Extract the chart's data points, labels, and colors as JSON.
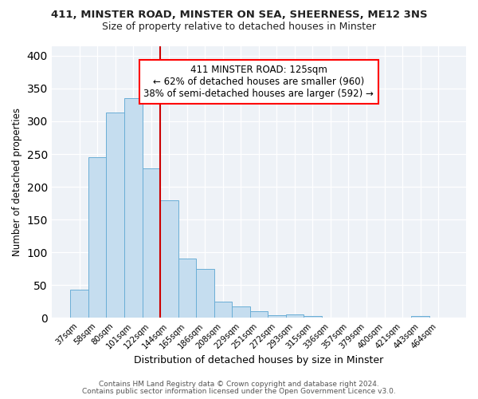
{
  "title1": "411, MINSTER ROAD, MINSTER ON SEA, SHEERNESS, ME12 3NS",
  "title2": "Size of property relative to detached houses in Minster",
  "xlabel": "Distribution of detached houses by size in Minster",
  "ylabel": "Number of detached properties",
  "bar_labels": [
    "37sqm",
    "58sqm",
    "80sqm",
    "101sqm",
    "122sqm",
    "144sqm",
    "165sqm",
    "186sqm",
    "208sqm",
    "229sqm",
    "251sqm",
    "272sqm",
    "293sqm",
    "315sqm",
    "336sqm",
    "357sqm",
    "379sqm",
    "400sqm",
    "421sqm",
    "443sqm",
    "464sqm"
  ],
  "bar_values": [
    43,
    245,
    313,
    335,
    228,
    180,
    91,
    75,
    25,
    17,
    10,
    4,
    5,
    3,
    0,
    0,
    0,
    0,
    0,
    3,
    0
  ],
  "bar_color": "#c5ddef",
  "bar_edge_color": "#6aaed6",
  "vline_x": 4.5,
  "vline_color": "#cc0000",
  "annotation_title": "411 MINSTER ROAD: 125sqm",
  "annotation_line1": "← 62% of detached houses are smaller (960)",
  "annotation_line2": "38% of semi-detached houses are larger (592) →",
  "annotation_box_edge": "red",
  "ylim": [
    0,
    415
  ],
  "yticks": [
    0,
    50,
    100,
    150,
    200,
    250,
    300,
    350,
    400
  ],
  "footer1": "Contains HM Land Registry data © Crown copyright and database right 2024.",
  "footer2": "Contains public sector information licensed under the Open Government Licence v3.0.",
  "bg_color": "#ffffff",
  "plot_bg_color": "#eef2f7",
  "grid_color": "#ffffff",
  "title1_fontsize": 9.5,
  "title2_fontsize": 9.0,
  "ylabel_fontsize": 8.5,
  "xlabel_fontsize": 9.0,
  "tick_fontsize": 7.2,
  "footer_fontsize": 6.5
}
